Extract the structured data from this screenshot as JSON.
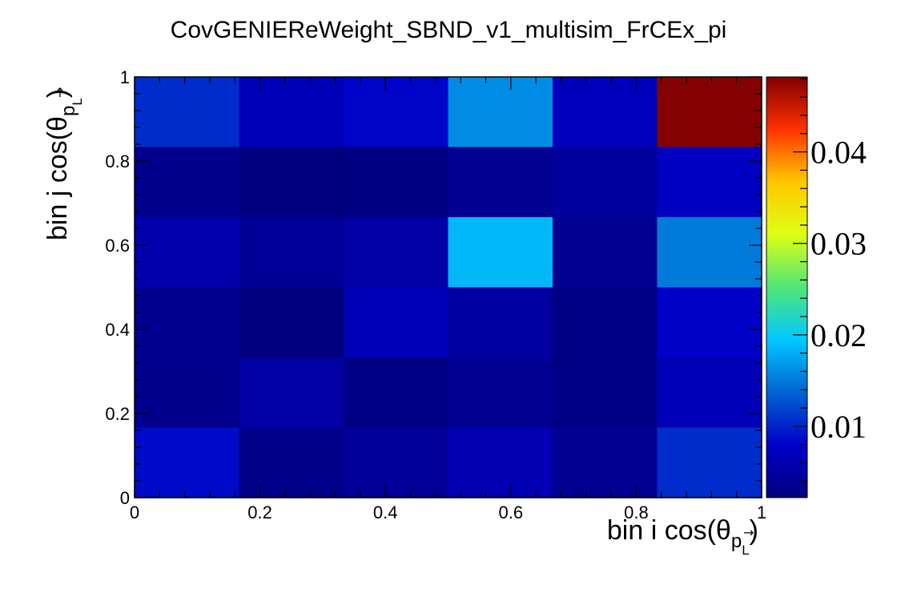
{
  "chart_data": {
    "type": "heatmap",
    "title": "CovGENIEReWeight_SBND_v1_multisim_FrCEx_pi",
    "xlabel": "bin i cos(θ",
    "xlabel_sub": "p",
    "xlabel_subsub": "L",
    "xlabel_close": ")",
    "ylabel": "bin j cos(θ",
    "ylabel_sub": "p",
    "ylabel_subsub": "L",
    "ylabel_close": ")",
    "xlim": [
      0,
      1
    ],
    "ylim": [
      0,
      1
    ],
    "x_ticks": [
      {
        "value": 0,
        "label": "0"
      },
      {
        "value": 0.2,
        "label": "0.2"
      },
      {
        "value": 0.4,
        "label": "0.4"
      },
      {
        "value": 0.6,
        "label": "0.6"
      },
      {
        "value": 0.8,
        "label": "0.8"
      },
      {
        "value": 1,
        "label": "1"
      }
    ],
    "y_ticks": [
      {
        "value": 0,
        "label": "0"
      },
      {
        "value": 0.2,
        "label": "0.2"
      },
      {
        "value": 0.4,
        "label": "0.4"
      },
      {
        "value": 0.6,
        "label": "0.6"
      },
      {
        "value": 0.8,
        "label": "0.8"
      },
      {
        "value": 1,
        "label": "1"
      }
    ],
    "n_bins_x": 6,
    "n_bins_y": 6,
    "values_rows_top_to_bottom": [
      [
        0.0105,
        0.0068,
        0.0082,
        0.016,
        0.007,
        0.048
      ],
      [
        0.0032,
        0.0022,
        0.0024,
        0.0038,
        0.0045,
        0.0075
      ],
      [
        0.0058,
        0.0042,
        0.0052,
        0.0185,
        0.0038,
        0.015
      ],
      [
        0.0035,
        0.0022,
        0.0065,
        0.0048,
        0.0028,
        0.008
      ],
      [
        0.0032,
        0.0052,
        0.0028,
        0.0038,
        0.0028,
        0.0065
      ],
      [
        0.0085,
        0.003,
        0.0042,
        0.0062,
        0.0038,
        0.0105
      ]
    ],
    "zlim": [
      0.0022,
      0.0482
    ],
    "z_ticks": [
      {
        "value": 0.01,
        "label": "0.01"
      },
      {
        "value": 0.02,
        "label": "0.02"
      },
      {
        "value": 0.03,
        "label": "0.03"
      },
      {
        "value": 0.04,
        "label": "0.04"
      }
    ],
    "colormap": [
      "#00007f",
      "#0000c8",
      "#0064d2",
      "#00c8ff",
      "#50e678",
      "#dcff14",
      "#ffc800",
      "#ff3200",
      "#7f0000"
    ],
    "grid": false
  }
}
